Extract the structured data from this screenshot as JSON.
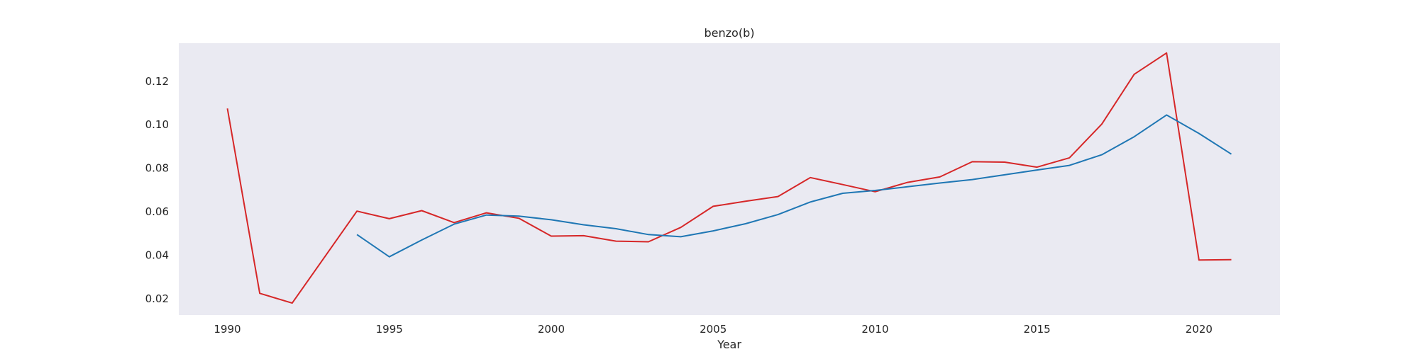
{
  "chart_data": {
    "type": "line",
    "title": "benzo(b)",
    "xlabel": "Year",
    "ylabel": "",
    "xlim": [
      1988.5,
      2022.5
    ],
    "ylim": [
      0.0125,
      0.1375
    ],
    "xticks": [
      1990,
      1995,
      2000,
      2005,
      2010,
      2015,
      2020
    ],
    "yticks": [
      0.02,
      0.04,
      0.06,
      0.08,
      0.1,
      0.12
    ],
    "ytick_labels": [
      "0.02",
      "0.04",
      "0.06",
      "0.08",
      "0.10",
      "0.12"
    ],
    "grid": false,
    "background_color": "#eaeaf2",
    "series": [
      {
        "color": "#d62728",
        "points": [
          [
            1990,
            0.1075
          ],
          [
            1991,
            0.0225
          ],
          [
            1992,
            0.018
          ],
          [
            1994,
            0.0603
          ],
          [
            1995,
            0.0568
          ],
          [
            1996,
            0.0605
          ],
          [
            1997,
            0.055
          ],
          [
            1998,
            0.0595
          ],
          [
            1999,
            0.057
          ],
          [
            2000,
            0.0488
          ],
          [
            2001,
            0.049
          ],
          [
            2002,
            0.0465
          ],
          [
            2003,
            0.0462
          ],
          [
            2004,
            0.0528
          ],
          [
            2005,
            0.0625
          ],
          [
            2006,
            0.0648
          ],
          [
            2007,
            0.067
          ],
          [
            2008,
            0.0757
          ],
          [
            2009,
            0.0725
          ],
          [
            2010,
            0.0692
          ],
          [
            2011,
            0.0735
          ],
          [
            2012,
            0.076
          ],
          [
            2013,
            0.083
          ],
          [
            2014,
            0.0828
          ],
          [
            2015,
            0.0805
          ],
          [
            2016,
            0.0848
          ],
          [
            2017,
            0.1003
          ],
          [
            2018,
            0.1232
          ],
          [
            2019,
            0.133
          ],
          [
            2020,
            0.0378
          ],
          [
            2021,
            0.038
          ]
        ]
      },
      {
        "color": "#1f77b4",
        "points": [
          [
            1994,
            0.0495
          ],
          [
            1995,
            0.0393
          ],
          [
            1996,
            0.047
          ],
          [
            1997,
            0.0543
          ],
          [
            1998,
            0.0585
          ],
          [
            1999,
            0.058
          ],
          [
            2000,
            0.0563
          ],
          [
            2001,
            0.054
          ],
          [
            2002,
            0.0522
          ],
          [
            2003,
            0.0495
          ],
          [
            2004,
            0.0485
          ],
          [
            2005,
            0.0512
          ],
          [
            2006,
            0.0545
          ],
          [
            2007,
            0.0587
          ],
          [
            2008,
            0.0645
          ],
          [
            2009,
            0.0685
          ],
          [
            2010,
            0.0698
          ],
          [
            2011,
            0.0715
          ],
          [
            2012,
            0.0732
          ],
          [
            2013,
            0.0748
          ],
          [
            2014,
            0.077
          ],
          [
            2015,
            0.0792
          ],
          [
            2016,
            0.0813
          ],
          [
            2017,
            0.0862
          ],
          [
            2018,
            0.0945
          ],
          [
            2019,
            0.1045
          ],
          [
            2020,
            0.096
          ],
          [
            2021,
            0.0865
          ]
        ]
      }
    ]
  }
}
